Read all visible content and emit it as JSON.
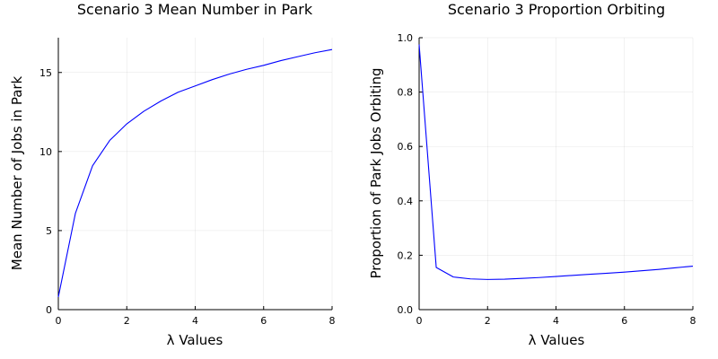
{
  "chart_data": [
    {
      "type": "line",
      "title": "Scenario 3 Mean Number in Park",
      "xlabel": "λ Values",
      "ylabel": "Mean Number of Jobs in Park",
      "xlim": [
        0,
        8
      ],
      "ylim": [
        0,
        17.2
      ],
      "xticks": [
        0,
        2,
        4,
        6,
        8
      ],
      "yticks": [
        0,
        5,
        10,
        15
      ],
      "grid": true,
      "legend": "none",
      "series": [
        {
          "color": "#0000ff",
          "x": [
            0,
            0.5,
            1,
            1.5,
            2,
            2.5,
            3,
            3.5,
            4,
            4.5,
            5,
            5.5,
            6,
            6.5,
            7,
            7.5,
            8
          ],
          "y": [
            0.8,
            6.1,
            9.1,
            10.7,
            11.75,
            12.55,
            13.2,
            13.75,
            14.15,
            14.55,
            14.9,
            15.2,
            15.45,
            15.75,
            16.0,
            16.25,
            16.45
          ]
        }
      ]
    },
    {
      "type": "line",
      "title": "Scenario 3 Proportion Orbiting",
      "xlabel": "λ Values",
      "ylabel": "Proportion of Park Jobs Orbiting",
      "xlim": [
        0,
        8
      ],
      "ylim": [
        0,
        1.0
      ],
      "xticks": [
        0,
        2,
        4,
        6,
        8
      ],
      "yticks": [
        0.0,
        0.2,
        0.4,
        0.6,
        0.8,
        1.0
      ],
      "ytick_labels": [
        "0.0",
        "0.2",
        "0.4",
        "0.6",
        "0.8",
        "1.0"
      ],
      "grid": true,
      "legend": "none",
      "series": [
        {
          "color": "#0000ff",
          "x": [
            0,
            0.5,
            1,
            1.5,
            2,
            2.5,
            3,
            3.5,
            4,
            4.5,
            5,
            5.5,
            6,
            6.5,
            7,
            7.5,
            8
          ],
          "y": [
            0.975,
            0.155,
            0.12,
            0.113,
            0.111,
            0.112,
            0.115,
            0.118,
            0.122,
            0.126,
            0.13,
            0.134,
            0.138,
            0.143,
            0.148,
            0.154,
            0.16
          ]
        }
      ]
    }
  ]
}
